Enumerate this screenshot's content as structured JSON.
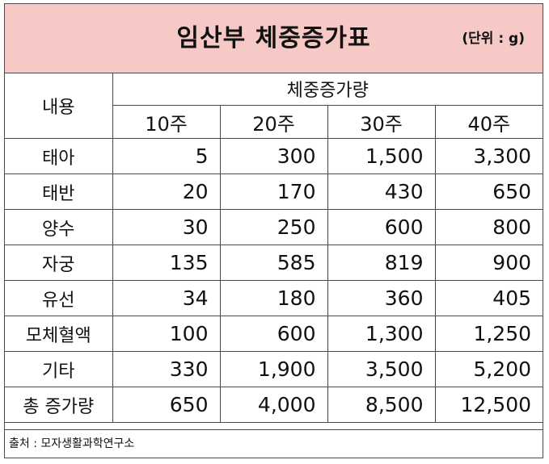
{
  "title": "임산부 체중증가표",
  "unit": "(단위 : g)",
  "table": {
    "content_header": "내용",
    "group_header": "체중증가량",
    "weeks": [
      "10주",
      "20주",
      "30주",
      "40주"
    ],
    "rows": [
      {
        "label": "태아",
        "values": [
          "5",
          "300",
          "1,500",
          "3,300"
        ]
      },
      {
        "label": "태반",
        "values": [
          "20",
          "170",
          "430",
          "650"
        ]
      },
      {
        "label": "양수",
        "values": [
          "30",
          "250",
          "600",
          "800"
        ]
      },
      {
        "label": "자궁",
        "values": [
          "135",
          "585",
          "819",
          "900"
        ]
      },
      {
        "label": "유선",
        "values": [
          "34",
          "180",
          "360",
          "405"
        ]
      },
      {
        "label": "모체혈액",
        "values": [
          "100",
          "600",
          "1,300",
          "1,250"
        ]
      },
      {
        "label": "기타",
        "values": [
          "330",
          "1,900",
          "3,500",
          "5,200"
        ]
      },
      {
        "label": "총 증가량",
        "values": [
          "650",
          "4,000",
          "8,500",
          "12,500"
        ]
      }
    ]
  },
  "source": "출처 : 모자생활과학연구소"
}
